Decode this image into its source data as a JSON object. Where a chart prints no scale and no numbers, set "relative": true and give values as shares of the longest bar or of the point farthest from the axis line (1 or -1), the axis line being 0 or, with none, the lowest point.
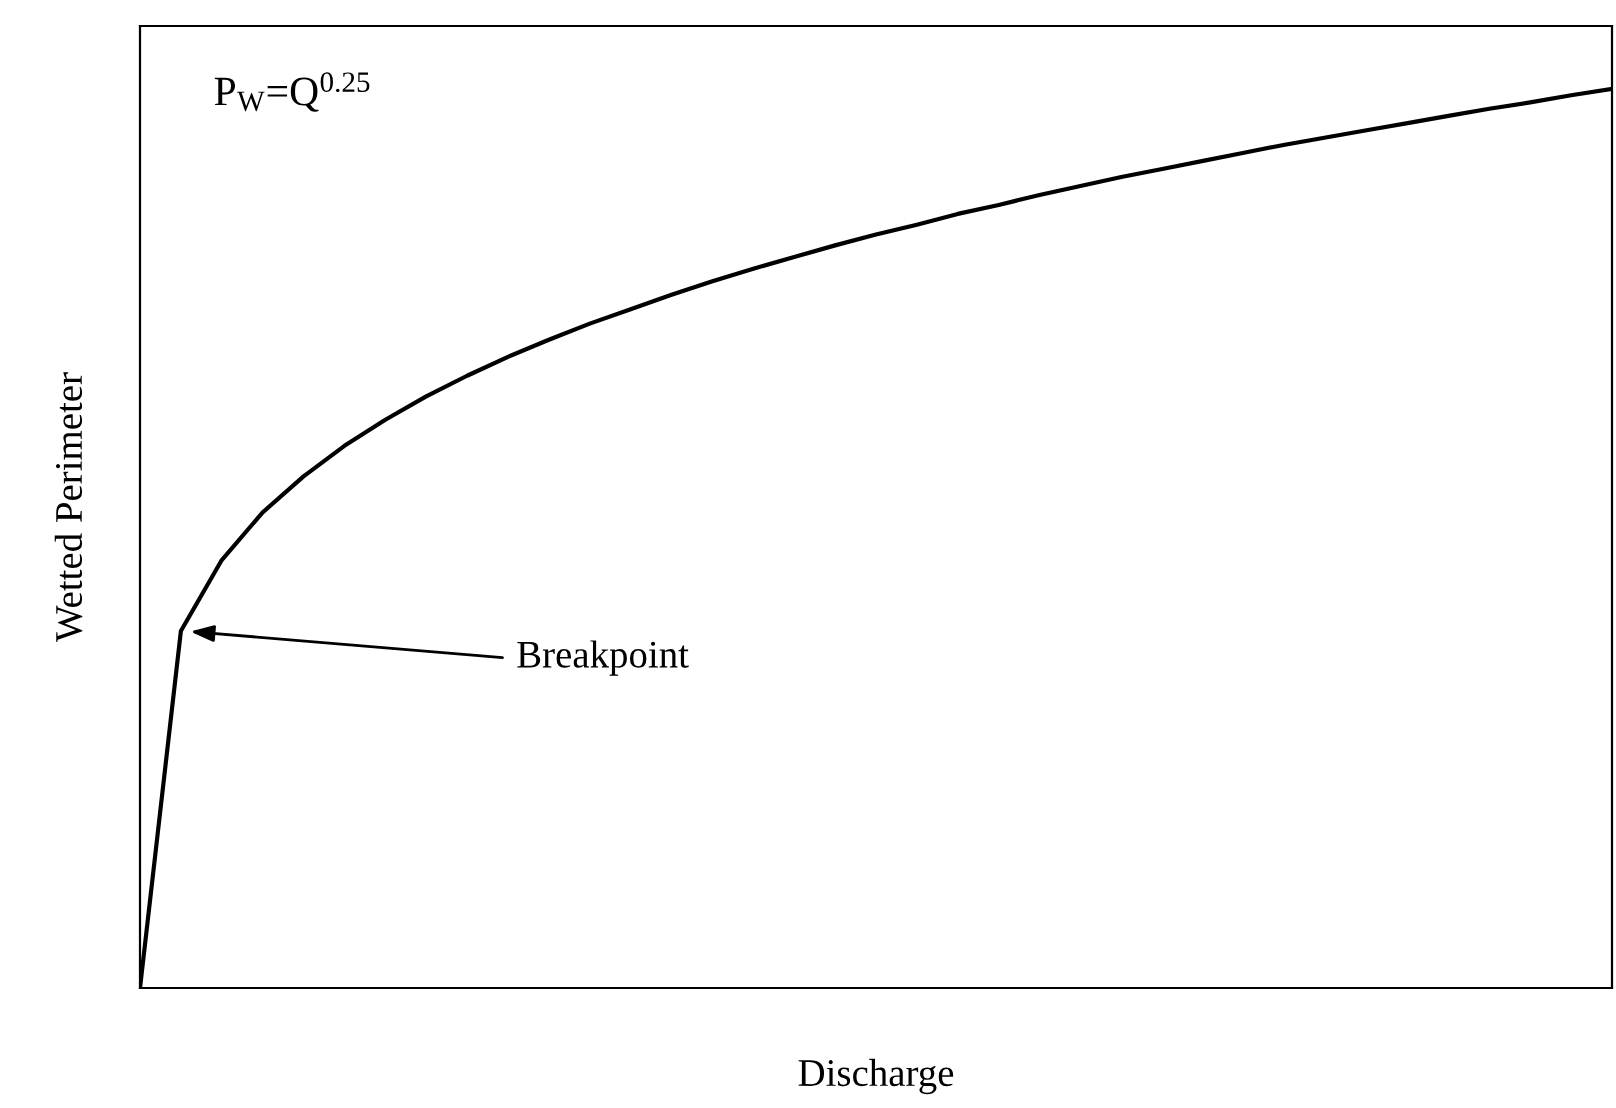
{
  "chart_data": {
    "type": "line",
    "relative": true,
    "xlabel": "Discharge",
    "ylabel": "Wetted Perimeter",
    "color": "#000000",
    "categories": [
      null,
      null,
      null,
      null,
      null,
      null,
      null,
      null,
      null,
      null,
      null,
      null,
      null,
      null,
      null,
      null,
      null,
      null,
      null,
      null,
      null,
      null,
      null,
      null,
      null,
      null,
      null,
      null,
      null,
      null,
      null,
      null,
      null,
      null,
      null,
      null,
      null
    ],
    "values": [
      0,
      0.397,
      0.476,
      0.529,
      0.569,
      0.603,
      0.632,
      0.658,
      0.681,
      0.702,
      0.721,
      0.739,
      0.755,
      0.771,
      0.786,
      0.8,
      0.813,
      0.826,
      0.838,
      0.849,
      0.861,
      0.871,
      0.882,
      0.892,
      0.902,
      0.911,
      0.92,
      0.929,
      0.938,
      0.946,
      0.954,
      0.962,
      0.97,
      0.978,
      0.985,
      0.993,
      1.0
    ],
    "annotations": [
      "P$_{W}$=Q$^{0.25}$",
      "Breakpoint"
    ],
    "grid": false,
    "legend": false,
    "marker": "none",
    "line_style": "solid"
  }
}
